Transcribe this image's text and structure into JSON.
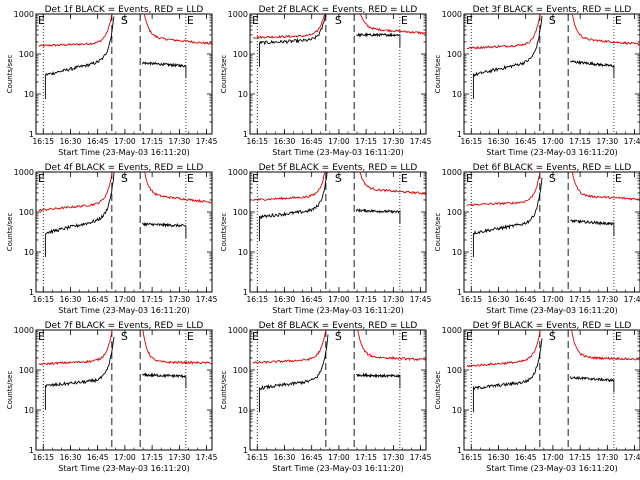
{
  "chart_data": {
    "type": "line",
    "layout": "3x3 grid of panels",
    "y_scale": "log",
    "ylim": [
      1,
      1000
    ],
    "ylabel": "Counts/sec",
    "xlabel": "Start Time (23-May-03 16:11:20)",
    "x_tick_labels": [
      "16:15",
      "16:30",
      "16:45",
      "17:00",
      "17:15",
      "17:30",
      "17:45"
    ],
    "y_tick_labels": [
      "1",
      "10",
      "100",
      "1000"
    ],
    "marker_labels": {
      "start": "E",
      "middle": "S",
      "end": "E"
    },
    "colors": {
      "events": "#000000",
      "lld": "#dd0000",
      "axes": "#000000"
    },
    "series_names": [
      "BLACK = Events",
      "RED = LLD"
    ],
    "panels": [
      {
        "title": "Det 1f BLACK = Events, RED = LLD",
        "red_pre": [
          160,
          190
        ],
        "black_pre": [
          30,
          75
        ],
        "red_post": [
          270,
          180
        ],
        "black_post": [
          60,
          50
        ]
      },
      {
        "title": "Det 2f BLACK = Events, RED = LLD",
        "red_pre": [
          260,
          290
        ],
        "black_pre": [
          190,
          230
        ],
        "red_post": [
          450,
          330
        ],
        "black_post": [
          300,
          300
        ]
      },
      {
        "title": "Det 3f BLACK = Events, RED = LLD",
        "red_pre": [
          140,
          175
        ],
        "black_pre": [
          30,
          75
        ],
        "red_post": [
          250,
          175
        ],
        "black_post": [
          65,
          50
        ]
      },
      {
        "title": "Det 4f BLACK = Events, RED = LLD",
        "red_pre": [
          110,
          170
        ],
        "black_pre": [
          30,
          75
        ],
        "red_post": [
          280,
          175
        ],
        "black_post": [
          50,
          45
        ]
      },
      {
        "title": "Det 5f BLACK = Events, RED = LLD",
        "red_pre": [
          200,
          250
        ],
        "black_pre": [
          75,
          120
        ],
        "red_post": [
          390,
          290
        ],
        "black_post": [
          110,
          100
        ]
      },
      {
        "title": "Det 6f BLACK = Events, RED = LLD",
        "red_pre": [
          150,
          180
        ],
        "black_pre": [
          30,
          60
        ],
        "red_post": [
          260,
          210
        ],
        "black_post": [
          60,
          50
        ]
      },
      {
        "title": "Det 7f BLACK = Events, RED = LLD",
        "red_pre": [
          140,
          175
        ],
        "black_pre": [
          40,
          60
        ],
        "red_post": [
          160,
          150
        ],
        "black_post": [
          75,
          70
        ]
      },
      {
        "title": "Det 8f BLACK = Events, RED = LLD",
        "red_pre": [
          150,
          190
        ],
        "black_pre": [
          35,
          60
        ],
        "red_post": [
          220,
          180
        ],
        "black_post": [
          75,
          70
        ]
      },
      {
        "title": "Det 9f BLACK = Events, RED = LLD",
        "red_pre": [
          125,
          175
        ],
        "black_pre": [
          35,
          55
        ],
        "red_post": [
          210,
          185
        ],
        "black_post": [
          65,
          55
        ]
      }
    ]
  }
}
